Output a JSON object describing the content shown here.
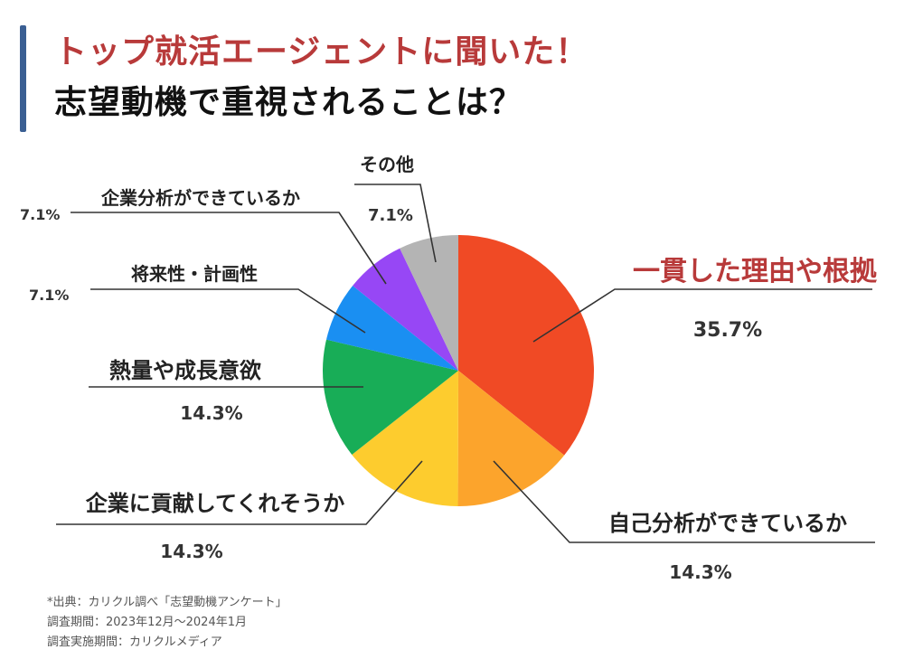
{
  "header": {
    "title_line1": "トップ就活エージェントに聞いた！",
    "title_line2": "志望動機で重視されることは？"
  },
  "chart_data": {
    "type": "pie",
    "slices": [
      {
        "label": "一貫した理由や根拠",
        "value": 35.7,
        "value_text": "35.7%",
        "color": "#f04a25",
        "label_color": "#b83a3a"
      },
      {
        "label": "自己分析ができているか",
        "value": 14.3,
        "value_text": "14.3%",
        "color": "#fca42c",
        "label_color": "#222222"
      },
      {
        "label": "企業に貢献してくれそうか",
        "value": 14.3,
        "value_text": "14.3%",
        "color": "#fdcc2e",
        "label_color": "#222222"
      },
      {
        "label": "熱量や成長意欲",
        "value": 14.3,
        "value_text": "14.3%",
        "color": "#18ad57",
        "label_color": "#222222"
      },
      {
        "label": "将来性・計画性",
        "value": 7.1,
        "value_text": "7.1%",
        "color": "#1a8ff2",
        "label_color": "#222222"
      },
      {
        "label": "企業分析ができているか",
        "value": 7.1,
        "value_text": "7.1%",
        "color": "#9747f5",
        "label_color": "#222222"
      },
      {
        "label": "その他",
        "value": 7.1,
        "value_text": "7.1%",
        "color": "#b4b4b4",
        "label_color": "#222222"
      }
    ]
  },
  "source": {
    "line1": "*出典：カリクル調べ「志望動機アンケート」",
    "line2": "調査期間：2023年12月〜2024年1月",
    "line3": "調査実施期間：カリクルメディア"
  }
}
